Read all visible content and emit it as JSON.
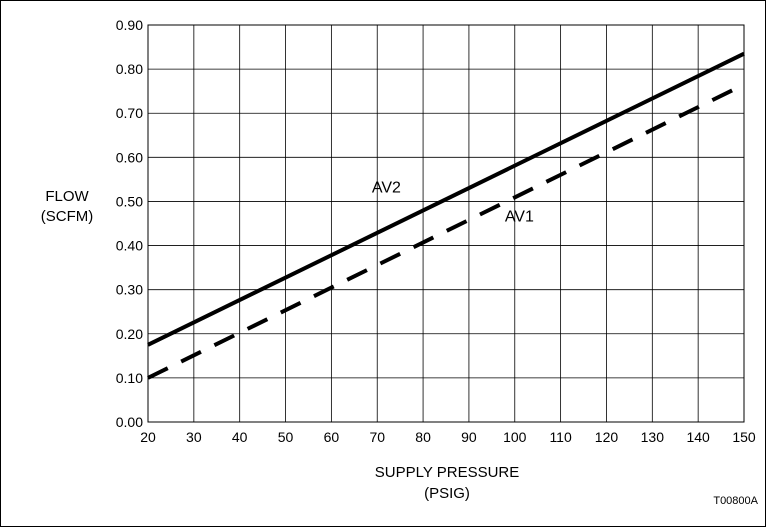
{
  "chart_data": {
    "type": "line",
    "ylabel_lines": [
      "FLOW",
      "(SCFM)"
    ],
    "xlabel_lines": [
      "SUPPLY PRESSURE",
      "(PSIG)"
    ],
    "figure_id": "T00800A",
    "xlim": [
      20,
      150
    ],
    "ylim": [
      0.0,
      0.9
    ],
    "x_ticks": [
      "20",
      "30",
      "40",
      "50",
      "60",
      "70",
      "80",
      "90",
      "100",
      "110",
      "120",
      "130",
      "140",
      "150"
    ],
    "y_ticks": [
      "0.00",
      "0.10",
      "0.20",
      "0.30",
      "0.40",
      "0.50",
      "0.60",
      "0.70",
      "0.80",
      "0.90"
    ],
    "grid": true,
    "series": [
      {
        "name": "AV2",
        "line_style": "solid",
        "x": [
          20,
          150
        ],
        "y": [
          0.175,
          0.835
        ]
      },
      {
        "name": "AV1",
        "line_style": "dashed",
        "x": [
          20,
          150
        ],
        "y": [
          0.1,
          0.765
        ]
      }
    ],
    "annotations": [
      {
        "text": "AV2",
        "x": 72,
        "y": 0.52
      },
      {
        "text": "AV1",
        "x": 101,
        "y": 0.455
      }
    ]
  }
}
